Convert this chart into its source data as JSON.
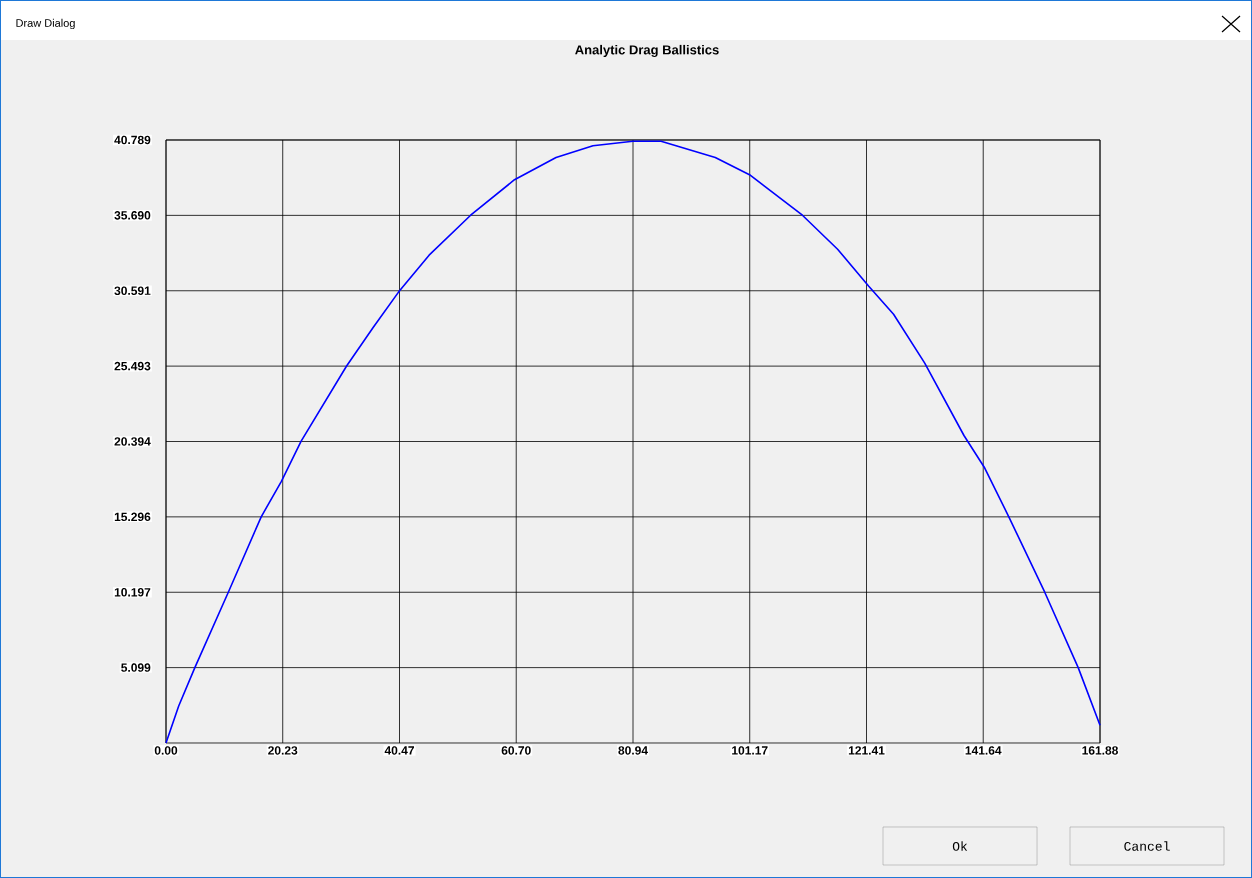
{
  "chart_data": {
    "type": "line",
    "title": "Analytic Drag Ballistics",
    "x": [
      0,
      2.2,
      5,
      10.8,
      16.5,
      20,
      23.4,
      31.3,
      35.9,
      40.3,
      45.6,
      52.8,
      60.4,
      67.6,
      74,
      80.9,
      85.8,
      95.2,
      101.3,
      110.3,
      116.4,
      121.8,
      126.1,
      131.5,
      138.3,
      141.9,
      146.2,
      152.3,
      158.1,
      161.88
    ],
    "series": [
      {
        "color": "#0000ff",
        "values": [
          0,
          2.5,
          5.1,
          10.2,
          15.3,
          17.7,
          20.4,
          25.5,
          28.1,
          30.5,
          33,
          35.7,
          38.1,
          39.6,
          40.4,
          40.7,
          40.7,
          39.6,
          38.4,
          35.7,
          33.4,
          30.9,
          29,
          25.7,
          20.8,
          18.6,
          15.2,
          10.2,
          5.1,
          1.2
        ]
      }
    ],
    "xlim": [
      0,
      161.88
    ],
    "ylim": [
      0,
      40.789
    ],
    "xticks": [
      {
        "value": 0,
        "label": "0.00"
      },
      20.23,
      40.47,
      {
        "value": 60.7,
        "label": "60.70"
      },
      80.94,
      101.17,
      121.41,
      141.64,
      161.88
    ],
    "yticks": [
      5.099,
      10.197,
      15.296,
      20.394,
      25.493,
      30.591,
      {
        "value": 35.69,
        "label": "35.690"
      },
      40.789
    ],
    "grid": true,
    "marker": "none",
    "line_style": "solid",
    "annotations": [
      "Draw Dialog",
      "Ok",
      "Cancel"
    ]
  }
}
